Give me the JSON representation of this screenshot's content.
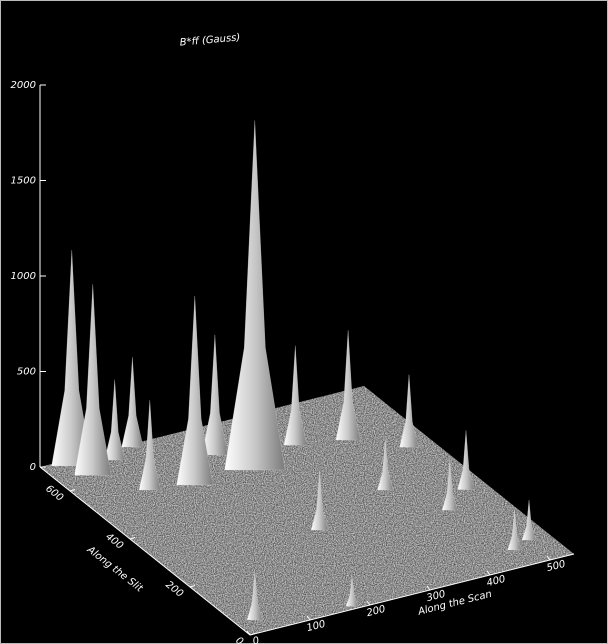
{
  "chart_data": {
    "type": "surface",
    "title": "B*ff (Gauss)",
    "xlabel": "Along the Scan",
    "ylabel": "Along the Slit",
    "xlim": [
      0,
      540
    ],
    "xticks": [
      0,
      100,
      200,
      300,
      400,
      500
    ],
    "ylim": [
      0,
      700
    ],
    "yticks": [
      0,
      200,
      400,
      600
    ],
    "zlim": [
      0,
      2000
    ],
    "zticks": [
      0,
      500,
      1000,
      1500,
      2000
    ],
    "color": "#d8d8d8",
    "peaks": [
      {
        "x": 434,
        "y": 541,
        "z": 575
      },
      {
        "x": 359,
        "y": 567,
        "z": 520
      },
      {
        "x": 500,
        "y": 470,
        "z": 380
      },
      {
        "x": 149,
        "y": 690,
        "z": 470
      },
      {
        "x": 241,
        "y": 599,
        "z": 630
      },
      {
        "x": 106,
        "y": 663,
        "z": 420
      },
      {
        "x": 42,
        "y": 678,
        "z": 1130
      },
      {
        "x": 268,
        "y": 520,
        "z": 1830
      },
      {
        "x": 54,
        "y": 632,
        "z": 1000
      },
      {
        "x": 168,
        "y": 520,
        "z": 990
      },
      {
        "x": 505,
        "y": 290,
        "z": 310
      },
      {
        "x": 402,
        "y": 353,
        "z": 270
      },
      {
        "x": 103,
        "y": 540,
        "z": 470
      },
      {
        "x": 452,
        "y": 238,
        "z": 260
      },
      {
        "x": 255,
        "y": 278,
        "z": 310
      },
      {
        "x": 505,
        "y": 80,
        "z": 210
      },
      {
        "x": 471,
        "y": 60,
        "z": 210
      },
      {
        "x": 175,
        "y": 10,
        "z": 160
      },
      {
        "x": 30,
        "y": 44,
        "z": 260
      }
    ]
  }
}
